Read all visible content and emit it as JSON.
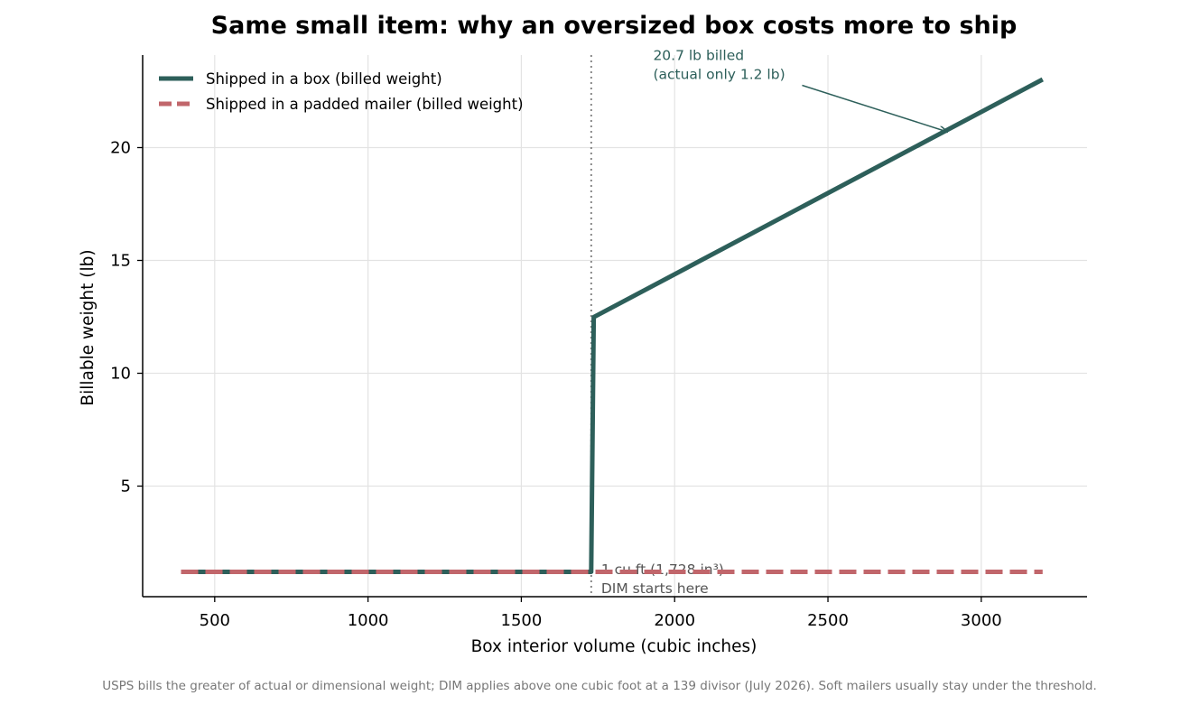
{
  "chart_data": {
    "type": "line",
    "title": "Same small item: why an oversized box costs more to ship",
    "xlabel": "Box interior volume (cubic inches)",
    "ylabel": "Billable weight (lb)",
    "xlim": [
      265,
      3345
    ],
    "ylim": [
      0.1,
      24.1
    ],
    "xticks": [
      500,
      1000,
      1500,
      2000,
      2500,
      3000
    ],
    "yticks": [
      5,
      10,
      15,
      20
    ],
    "grid": true,
    "legend_placement": "top-left",
    "series": [
      {
        "name": "Shipped in a box (billed weight)",
        "color": "#2d5f5a",
        "style": "solid",
        "x": [
          390,
          1728,
          1736,
          3200
        ],
        "y": [
          1.2,
          1.2,
          12.49,
          23.02
        ]
      },
      {
        "name": "Shipped in a padded mailer (billed weight)",
        "color": "#c1666b",
        "style": "dashed",
        "x": [
          390,
          3200
        ],
        "y": [
          1.2,
          1.2
        ]
      }
    ],
    "threshold": {
      "x": 1728,
      "label_line1": "1 cu ft (1,728 in³)",
      "label_line2": "DIM starts here"
    },
    "annotation": {
      "line1": "20.7 lb billed",
      "line2": "(actual only 1.2 lb)",
      "target_x": 2880,
      "target_y": 20.7,
      "text_x": 1930,
      "text_y": 23.2
    }
  },
  "footnote": "USPS bills the greater of actual or dimensional weight; DIM applies above one cubic foot at a 139 divisor (July 2026). Soft mailers usually stay under the threshold."
}
